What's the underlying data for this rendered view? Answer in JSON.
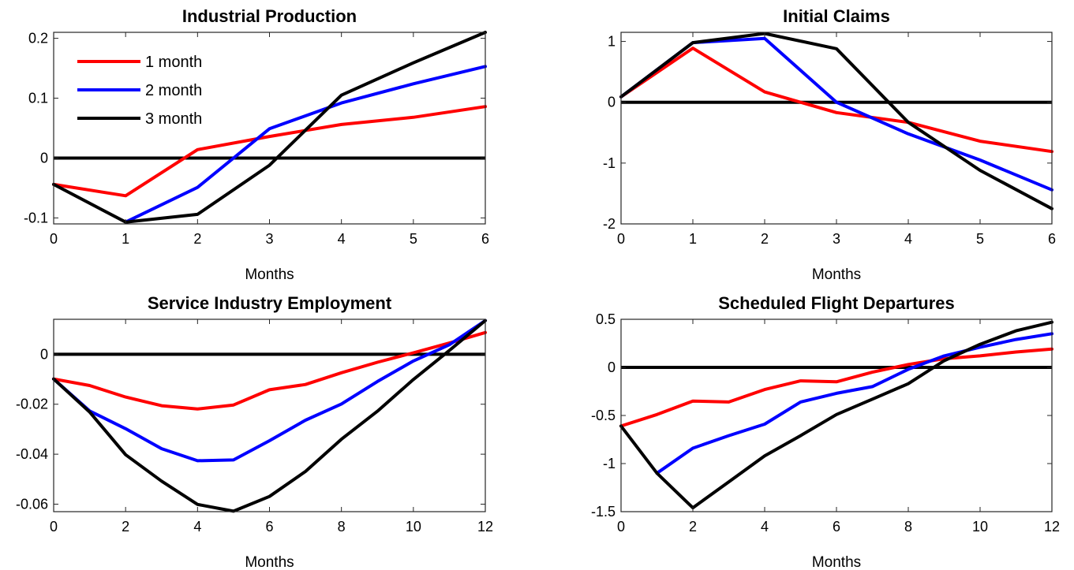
{
  "colors": {
    "1 month": "#ff0000",
    "2 month": "#0000ff",
    "3 month": "#000000",
    "zero_line": "#000000",
    "axes": "#262626"
  },
  "legend": {
    "location": "top-left of first panel",
    "entries": [
      "1 month",
      "2 month",
      "3 month"
    ]
  },
  "chart_data": [
    {
      "type": "line",
      "title": "Industrial Production",
      "xlabel": "Months",
      "ylabel": "",
      "xlim": [
        0,
        6
      ],
      "ylim": [
        -0.11,
        0.21
      ],
      "xticks": [
        0,
        1,
        2,
        3,
        4,
        5,
        6
      ],
      "xtick_labels": [
        "0",
        "1",
        "2",
        "3",
        "4",
        "5",
        "6"
      ],
      "yticks": [
        -0.1,
        0,
        0.1,
        0.2
      ],
      "ytick_labels": [
        "-0.1",
        "0",
        "0.1",
        "0.2"
      ],
      "grid": false,
      "zero_line": true,
      "x": [
        0,
        1,
        2,
        3,
        4,
        5,
        6
      ],
      "series": [
        {
          "name": "1 month",
          "values": [
            -0.044,
            -0.063,
            0.014,
            0.036,
            0.056,
            0.068,
            0.086
          ]
        },
        {
          "name": "2 month",
          "x": [
            1,
            2,
            3,
            4,
            5,
            6
          ],
          "values": [
            -0.107,
            -0.049,
            0.049,
            0.092,
            0.124,
            0.153
          ]
        },
        {
          "name": "3 month",
          "values": [
            -0.044,
            -0.107,
            -0.094,
            -0.012,
            0.105,
            0.159,
            0.21
          ]
        }
      ]
    },
    {
      "type": "line",
      "title": "Initial Claims",
      "xlabel": "Months",
      "ylabel": "",
      "xlim": [
        0,
        6
      ],
      "ylim": [
        -2,
        1.15
      ],
      "xticks": [
        0,
        1,
        2,
        3,
        4,
        5,
        6
      ],
      "xtick_labels": [
        "0",
        "1",
        "2",
        "3",
        "4",
        "5",
        "6"
      ],
      "yticks": [
        -2,
        -1,
        0,
        1
      ],
      "ytick_labels": [
        "-2",
        "-1",
        "0",
        "1"
      ],
      "grid": false,
      "zero_line": true,
      "x": [
        0,
        1,
        2,
        3,
        4,
        5,
        6
      ],
      "series": [
        {
          "name": "1 month",
          "values": [
            0.09,
            0.89,
            0.17,
            -0.17,
            -0.33,
            -0.64,
            -0.81
          ]
        },
        {
          "name": "2 month",
          "values": [
            0.09,
            0.98,
            1.05,
            0.0,
            -0.52,
            -0.95,
            -1.44
          ]
        },
        {
          "name": "3 month",
          "values": [
            0.09,
            0.98,
            1.13,
            0.88,
            -0.33,
            -1.12,
            -1.75
          ]
        }
      ]
    },
    {
      "type": "line",
      "title": "Service Industry Employment",
      "xlabel": "Months",
      "ylabel": "",
      "xlim": [
        0,
        12
      ],
      "ylim": [
        -0.063,
        0.014
      ],
      "xticks": [
        0,
        2,
        4,
        6,
        8,
        10,
        12
      ],
      "xtick_labels": [
        "0",
        "2",
        "4",
        "6",
        "8",
        "10",
        "12"
      ],
      "yticks": [
        -0.06,
        -0.04,
        -0.02,
        0
      ],
      "ytick_labels": [
        "-0.06",
        "-0.04",
        "-0.02",
        "0"
      ],
      "grid": false,
      "zero_line": true,
      "x": [
        0,
        1,
        2,
        3,
        4,
        5,
        6,
        7,
        8,
        9,
        10,
        11,
        12
      ],
      "series": [
        {
          "name": "1 month",
          "values": [
            -0.0099,
            -0.0125,
            -0.0171,
            -0.0206,
            -0.0219,
            -0.0203,
            -0.0142,
            -0.0121,
            -0.0074,
            -0.0032,
            0.0006,
            0.0045,
            0.0087
          ]
        },
        {
          "name": "2 month",
          "values": [
            -0.0099,
            -0.0227,
            -0.0298,
            -0.0378,
            -0.0426,
            -0.0423,
            -0.0346,
            -0.0264,
            -0.0199,
            -0.0109,
            -0.0027,
            0.0038,
            0.0135
          ]
        },
        {
          "name": "3 month",
          "values": [
            -0.0099,
            -0.0231,
            -0.0402,
            -0.0508,
            -0.0601,
            -0.0628,
            -0.0569,
            -0.0469,
            -0.034,
            -0.0228,
            -0.0101,
            0.0015,
            0.0135
          ]
        }
      ]
    },
    {
      "type": "line",
      "title": "Scheduled Flight Departures",
      "xlabel": "Months",
      "ylabel": "",
      "xlim": [
        0,
        12
      ],
      "ylim": [
        -1.5,
        0.5
      ],
      "xticks": [
        0,
        2,
        4,
        6,
        8,
        10,
        12
      ],
      "xtick_labels": [
        "0",
        "2",
        "4",
        "6",
        "8",
        "10",
        "12"
      ],
      "yticks": [
        -1.5,
        -1,
        -0.5,
        0,
        0.5
      ],
      "ytick_labels": [
        "-1.5",
        "-1",
        "-0.5",
        "0",
        "0.5"
      ],
      "grid": false,
      "zero_line": true,
      "x": [
        0,
        1,
        2,
        3,
        4,
        5,
        6,
        7,
        8,
        9,
        10,
        11,
        12
      ],
      "series": [
        {
          "name": "1 month",
          "values": [
            -0.61,
            -0.49,
            -0.35,
            -0.36,
            -0.23,
            -0.14,
            -0.15,
            -0.05,
            0.03,
            0.09,
            0.12,
            0.16,
            0.19
          ]
        },
        {
          "name": "2 month",
          "x": [
            1,
            2,
            3,
            4,
            5,
            6,
            7,
            8,
            9,
            10,
            11,
            12
          ],
          "values": [
            -1.1,
            -0.84,
            -0.71,
            -0.59,
            -0.36,
            -0.27,
            -0.2,
            -0.02,
            0.12,
            0.21,
            0.29,
            0.35
          ]
        },
        {
          "name": "3 month",
          "values": [
            -0.61,
            -1.1,
            -1.46,
            -1.19,
            -0.92,
            -0.71,
            -0.49,
            -0.33,
            -0.17,
            0.07,
            0.24,
            0.38,
            0.47
          ]
        }
      ]
    }
  ]
}
